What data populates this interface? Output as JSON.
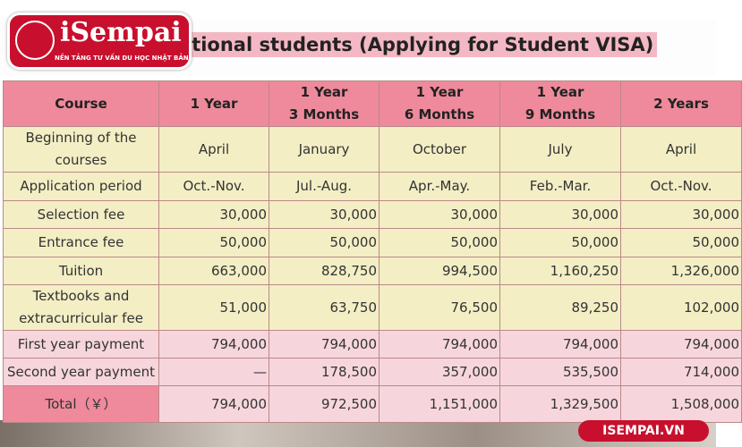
{
  "header": {
    "title": "ational students (Applying for Student VISA)",
    "logo": "iSempai",
    "tagline": "NỀN TẢNG TƯ VẤN DU HỌC NHẬT BẢN"
  },
  "table": {
    "header": [
      "Course",
      "1 Year",
      "1 Year\n3 Months",
      "1 Year\n6 Months",
      "1 Year\n9 Months",
      "2 Years"
    ],
    "rows": [
      [
        "Beginning of the\ncourses",
        "April",
        "January",
        "October",
        "July",
        "April"
      ],
      [
        "Application period",
        "Oct.-Nov.",
        "Jul.-Aug.",
        "Apr.-May.",
        "Feb.-Mar.",
        "Oct.-Nov."
      ],
      [
        "Selection fee",
        "30,000",
        "30,000",
        "30,000",
        "30,000",
        "30,000"
      ],
      [
        "Entrance fee",
        "50,000",
        "50,000",
        "50,000",
        "50,000",
        "50,000"
      ],
      [
        "Tuition",
        "663,000",
        "828,750",
        "994,500",
        "1,160,250",
        "1,326,000"
      ],
      [
        "Textbooks and\nextracurricular fee",
        "51,000",
        "63,750",
        "76,500",
        "89,250",
        "102,000"
      ],
      [
        "First year payment",
        "794,000",
        "794,000",
        "794,000",
        "794,000",
        "794,000"
      ],
      [
        "Second year payment",
        "—",
        "178,500",
        "357,000",
        "535,500",
        "714,000"
      ],
      [
        "Total（￥）",
        "794,000",
        "972,500",
        "1,151,000",
        "1,329,500",
        "1,508,000"
      ]
    ]
  },
  "footer": {
    "site": "ISEMPAI.VN"
  }
}
